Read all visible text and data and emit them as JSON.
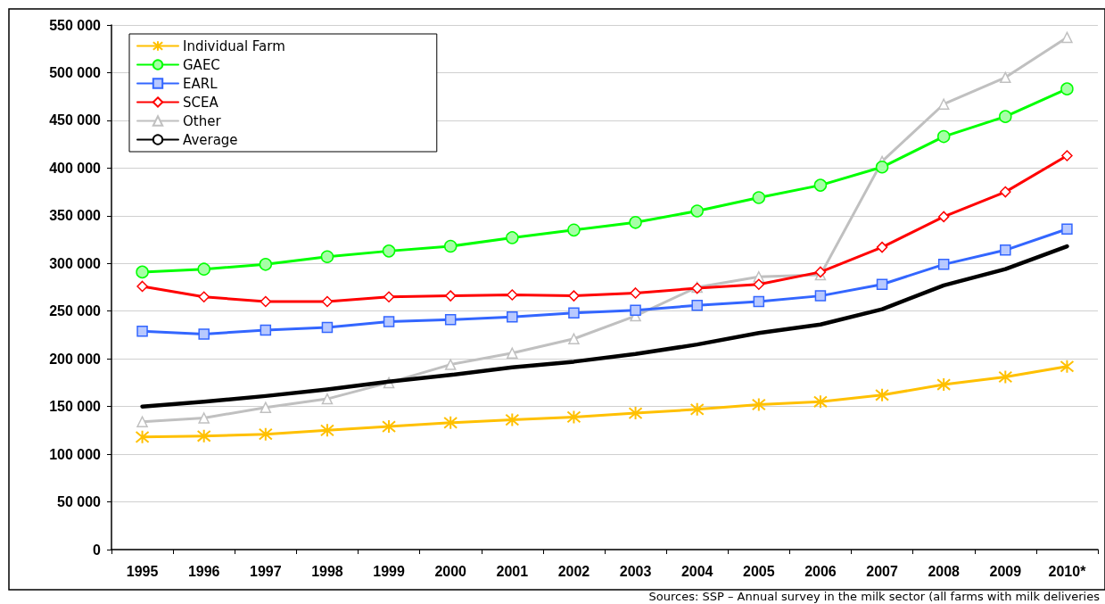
{
  "chart_data": {
    "type": "line",
    "categories": [
      "1995",
      "1996",
      "1997",
      "1998",
      "1999",
      "2000",
      "2001",
      "2002",
      "2003",
      "2004",
      "2005",
      "2006",
      "2007",
      "2008",
      "2009",
      "2010*"
    ],
    "series": [
      {
        "name": "Individual Farm",
        "color": "#ffc000",
        "marker": "cross",
        "values": [
          118000,
          119000,
          121000,
          125000,
          129000,
          133000,
          136000,
          139000,
          143000,
          147000,
          152000,
          155000,
          162000,
          173000,
          181000,
          192000
        ]
      },
      {
        "name": "GAEC",
        "color": "#00ff00",
        "marker": "circle",
        "values": [
          291000,
          294000,
          299000,
          307000,
          313000,
          318000,
          327000,
          335000,
          343000,
          355000,
          369000,
          382000,
          401000,
          433000,
          454000,
          483000
        ]
      },
      {
        "name": "EARL",
        "color": "#3366ff",
        "marker": "square",
        "values": [
          229000,
          226000,
          230000,
          233000,
          239000,
          241000,
          244000,
          248000,
          251000,
          256000,
          260000,
          266000,
          278000,
          299000,
          314000,
          336000
        ]
      },
      {
        "name": "SCEA",
        "color": "#ff0000",
        "marker": "diamond",
        "values": [
          276000,
          265000,
          260000,
          260000,
          265000,
          266000,
          267000,
          266000,
          269000,
          274000,
          278000,
          291000,
          317000,
          349000,
          375000,
          413000
        ]
      },
      {
        "name": "Other",
        "color": "#c0c0c0",
        "marker": "triangle",
        "values": [
          134000,
          138000,
          149000,
          158000,
          175000,
          194000,
          206000,
          221000,
          245000,
          275000,
          286000,
          288000,
          407000,
          467000,
          495000,
          537000
        ]
      },
      {
        "name": "Average",
        "color": "#000000",
        "marker": "none",
        "values": [
          150000,
          155000,
          161000,
          168000,
          176000,
          183000,
          191000,
          197000,
          205000,
          215000,
          227000,
          236000,
          252000,
          277000,
          294000,
          318000
        ]
      }
    ],
    "ylim": [
      0,
      550000
    ],
    "yticks": [
      {
        "value": 0,
        "label": "0"
      },
      {
        "value": 50000,
        "label": "50 000"
      },
      {
        "value": 100000,
        "label": "100 000"
      },
      {
        "value": 150000,
        "label": "150 000"
      },
      {
        "value": 200000,
        "label": "200 000"
      },
      {
        "value": 250000,
        "label": "250 000"
      },
      {
        "value": 300000,
        "label": "300 000"
      },
      {
        "value": 350000,
        "label": "350 000"
      },
      {
        "value": 400000,
        "label": "400 000"
      },
      {
        "value": 450000,
        "label": "450 000"
      },
      {
        "value": 500000,
        "label": "500 000"
      },
      {
        "value": 550000,
        "label": "550 000"
      }
    ],
    "grid": "y",
    "legend": "top left",
    "line_style": "solid",
    "annotations": [
      "Sources: SSP – Annual survey in the milk sector (all farms with milk deliveries"
    ]
  }
}
